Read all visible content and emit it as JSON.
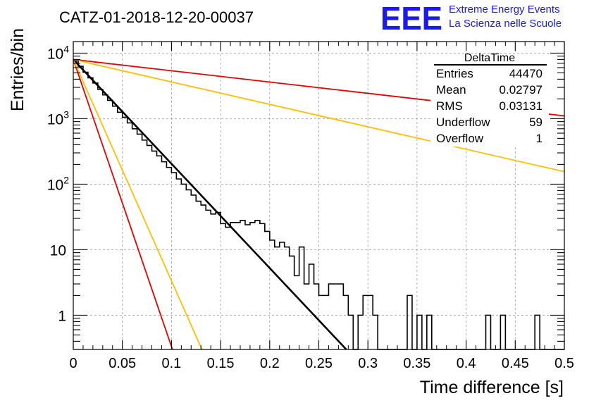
{
  "chart_data": {
    "type": "line",
    "title": "CATZ-01-2018-12-20-00037",
    "xlabel": "Time difference [s]",
    "ylabel": "Entries/bin",
    "xlim": [
      0,
      0.5
    ],
    "ylim": [
      0.3,
      15000
    ],
    "ylog": true,
    "grid": true,
    "x_ticks": [
      "0",
      "0.05",
      "0.1",
      "0.15",
      "0.2",
      "0.25",
      "0.3",
      "0.35",
      "0.4",
      "0.45",
      "0.5"
    ],
    "x_tick_values": [
      0,
      0.05,
      0.1,
      0.15,
      0.2,
      0.25,
      0.3,
      0.35,
      0.4,
      0.45,
      0.5
    ],
    "y_ticks": [
      {
        "value": 10000,
        "base": "10",
        "exp": "4"
      },
      {
        "value": 1000,
        "base": "10",
        "exp": "3"
      },
      {
        "value": 100,
        "base": "10",
        "exp": "2"
      },
      {
        "value": 10,
        "base": "10",
        "exp": ""
      },
      {
        "value": 1,
        "base": "1",
        "exp": ""
      }
    ],
    "histogram": {
      "name": "DeltaTime",
      "bin_width": 0.005,
      "x_start": 0,
      "values": [
        7600,
        6300,
        5100,
        4200,
        3500,
        2800,
        2300,
        1900,
        1550,
        1250,
        1050,
        860,
        700,
        580,
        470,
        390,
        320,
        270,
        220,
        180,
        150,
        120,
        100,
        82,
        68,
        55,
        48,
        40,
        35,
        37,
        25,
        22,
        26,
        26,
        28,
        24,
        26,
        28,
        25,
        19,
        14,
        11,
        13,
        11,
        8,
        4,
        11,
        3,
        6,
        3,
        2,
        2,
        3,
        3,
        3,
        2,
        1,
        0,
        1,
        2,
        2,
        1,
        0,
        0,
        0,
        0,
        0,
        0,
        2,
        0,
        1,
        0,
        1,
        0,
        0,
        0,
        0,
        0,
        0,
        0,
        0,
        0,
        0,
        0,
        1,
        0,
        0,
        1,
        0,
        0,
        0,
        0,
        0,
        0,
        1,
        0,
        0,
        0,
        0,
        0
      ]
    },
    "fit_lines": [
      {
        "color": "#000000",
        "x": [
          0,
          0.278
        ],
        "y": [
          8000,
          0.3
        ]
      },
      {
        "color": "#e60000",
        "x": [
          0,
          0.5
        ],
        "y": [
          8000,
          1100
        ]
      },
      {
        "color": "#ffbf00",
        "x": [
          0,
          0.5
        ],
        "y": [
          8000,
          155
        ]
      },
      {
        "color": "#e60000",
        "x": [
          0,
          0.101
        ],
        "y": [
          8000,
          0.3
        ]
      },
      {
        "color": "#ffbf00",
        "x": [
          0,
          0.131
        ],
        "y": [
          8000,
          0.3
        ]
      }
    ],
    "stats": {
      "title": "DeltaTime",
      "rows": [
        {
          "label": "Entries",
          "value": "44470"
        },
        {
          "label": "Mean",
          "value": "0.02797"
        },
        {
          "label": "RMS",
          "value": "0.03131"
        },
        {
          "label": "Underflow",
          "value": "59"
        },
        {
          "label": "Overflow",
          "value": "1"
        }
      ]
    }
  },
  "logo": {
    "mark": "EEE",
    "line1": "Extreme Energy Events",
    "line2": "La Scienza nelle Scuole"
  }
}
